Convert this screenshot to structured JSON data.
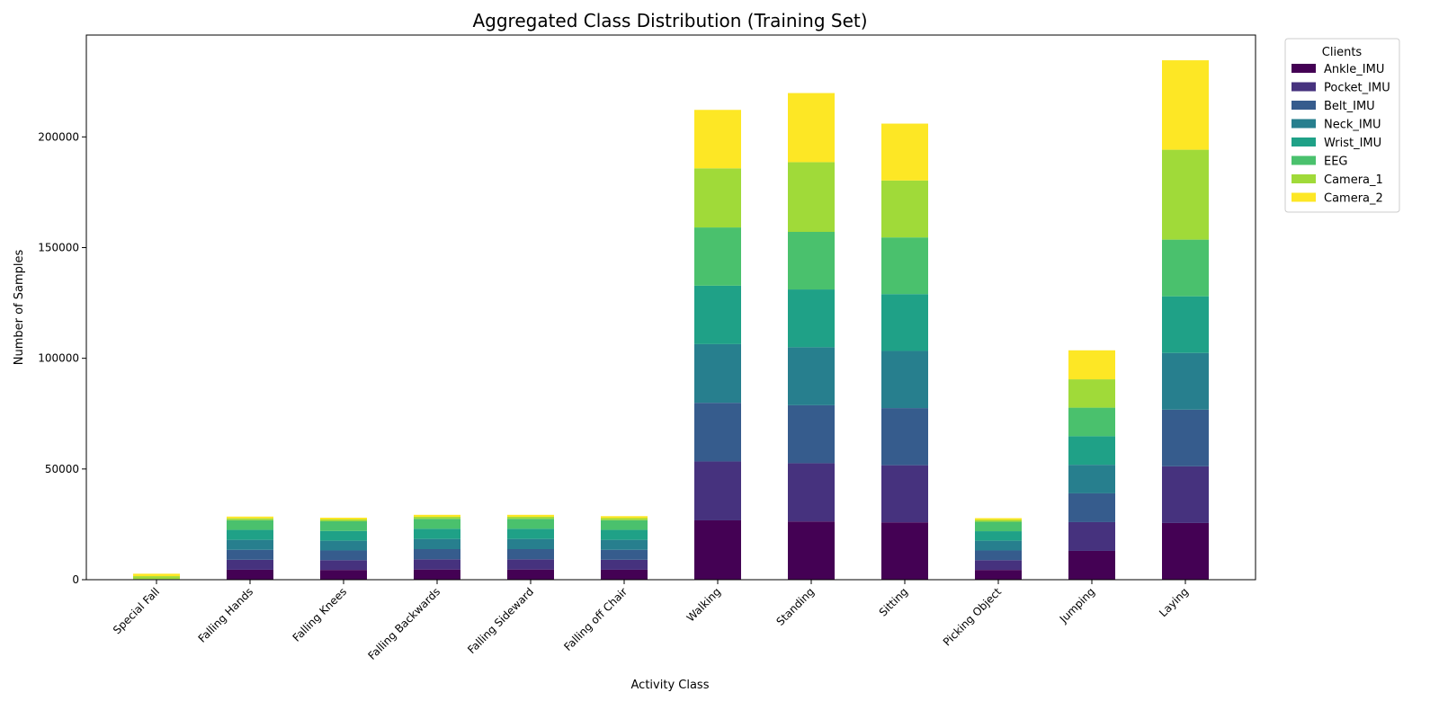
{
  "chart_data": {
    "type": "bar",
    "stacked": true,
    "title": "Aggregated Class Distribution (Training Set)",
    "xlabel": "Activity Class",
    "ylabel": "Number of Samples",
    "ylim": [
      0,
      246000
    ],
    "yticks": [
      0,
      50000,
      100000,
      150000,
      200000
    ],
    "categories": [
      "Special Fall",
      "Falling Hands",
      "Falling Knees",
      "Falling Backwards",
      "Falling Sideward",
      "Falling off Chair",
      "Walking",
      "Standing",
      "Sitting",
      "Picking Object",
      "Jumping",
      "Laying"
    ],
    "legend": {
      "title": "Clients",
      "position": "upper-right-outside"
    },
    "grid": false,
    "series": [
      {
        "name": "Ankle_IMU",
        "color": "#440154",
        "values": [
          0,
          4500,
          4400,
          4600,
          4600,
          4500,
          26800,
          26300,
          25900,
          4400,
          13000,
          25600
        ]
      },
      {
        "name": "Pocket_IMU",
        "color": "#46327e",
        "values": [
          0,
          4500,
          4400,
          4600,
          4600,
          4500,
          26600,
          26300,
          25800,
          4400,
          13000,
          25600
        ]
      },
      {
        "name": "Belt_IMU",
        "color": "#365c8d",
        "values": [
          0,
          4500,
          4400,
          4600,
          4600,
          4500,
          26500,
          26200,
          25800,
          4400,
          13000,
          25600
        ]
      },
      {
        "name": "Neck_IMU",
        "color": "#277f8e",
        "values": [
          0,
          4500,
          4400,
          4600,
          4600,
          4500,
          26500,
          26200,
          25800,
          4400,
          12900,
          25600
        ]
      },
      {
        "name": "Wrist_IMU",
        "color": "#1fa187",
        "values": [
          0,
          4500,
          4400,
          4600,
          4600,
          4500,
          26400,
          26100,
          25700,
          4300,
          12900,
          25600
        ]
      },
      {
        "name": "EEG",
        "color": "#4ac16d",
        "values": [
          300,
          4400,
          4400,
          4500,
          4500,
          4400,
          26300,
          26000,
          25600,
          4300,
          12900,
          25600
        ]
      },
      {
        "name": "Camera_1",
        "color": "#a0da39",
        "values": [
          1300,
          800,
          800,
          900,
          900,
          900,
          26700,
          31500,
          25700,
          800,
          12800,
          40600
        ]
      },
      {
        "name": "Camera_2",
        "color": "#fde725",
        "values": [
          1100,
          800,
          800,
          900,
          900,
          900,
          26400,
          31200,
          25700,
          800,
          13100,
          40400
        ]
      }
    ]
  }
}
